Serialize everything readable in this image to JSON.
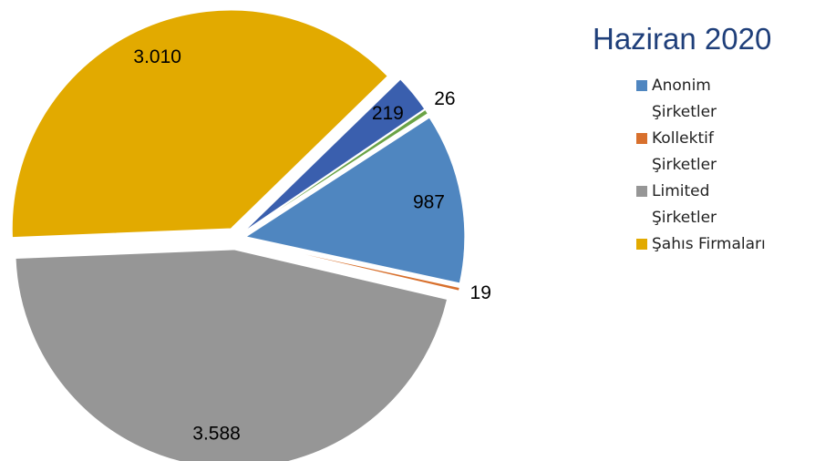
{
  "chart_data": {
    "type": "pie",
    "title": "Haziran 2020",
    "categories": [
      "Anonim Şirketler",
      "Kollektif Şirketler",
      "Limited Şirketler",
      "Şahıs Firmaları",
      null,
      null
    ],
    "values": [
      987,
      19,
      3588,
      3010,
      219,
      26
    ],
    "value_labels": [
      "987",
      "19",
      "3.588",
      "3.010",
      "219",
      "26"
    ],
    "colors": [
      "#4f86c0",
      "#d8702d",
      "#969696",
      "#e2aa00",
      "#3a5fae",
      "#6aa346"
    ]
  }
}
